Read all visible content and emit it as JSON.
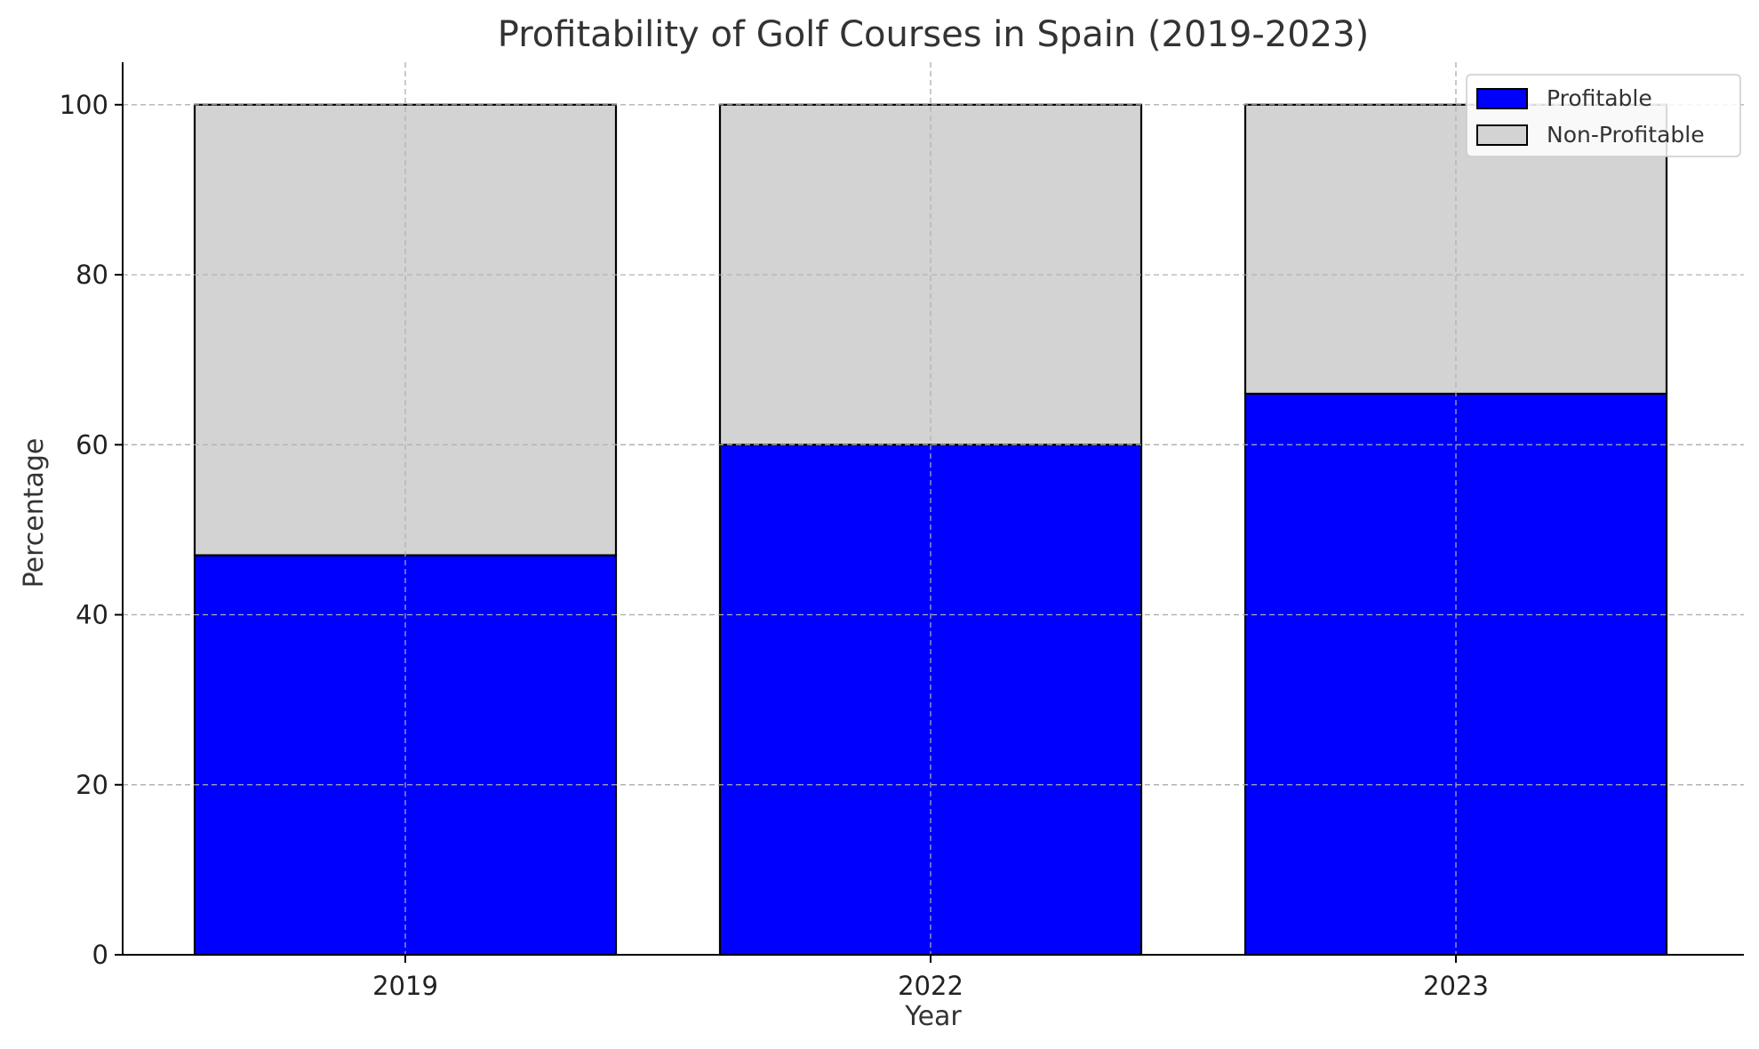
{
  "chart_data": {
    "type": "bar",
    "stacked": true,
    "title": "Profitability of Golf Courses in Spain (2019-2023)",
    "xlabel": "Year",
    "ylabel": "Percentage",
    "categories": [
      "2019",
      "2022",
      "2023"
    ],
    "series": [
      {
        "name": "Profitable",
        "values": [
          47,
          60,
          66
        ],
        "color": "#0000ff"
      },
      {
        "name": "Non-Profitable",
        "values": [
          53,
          40,
          34
        ],
        "color": "#d3d3d3"
      }
    ],
    "ylim": [
      0,
      105
    ],
    "yticks": [
      "0",
      "20",
      "40",
      "60",
      "80",
      "100"
    ],
    "grid": true,
    "legend_position": "top-right"
  }
}
